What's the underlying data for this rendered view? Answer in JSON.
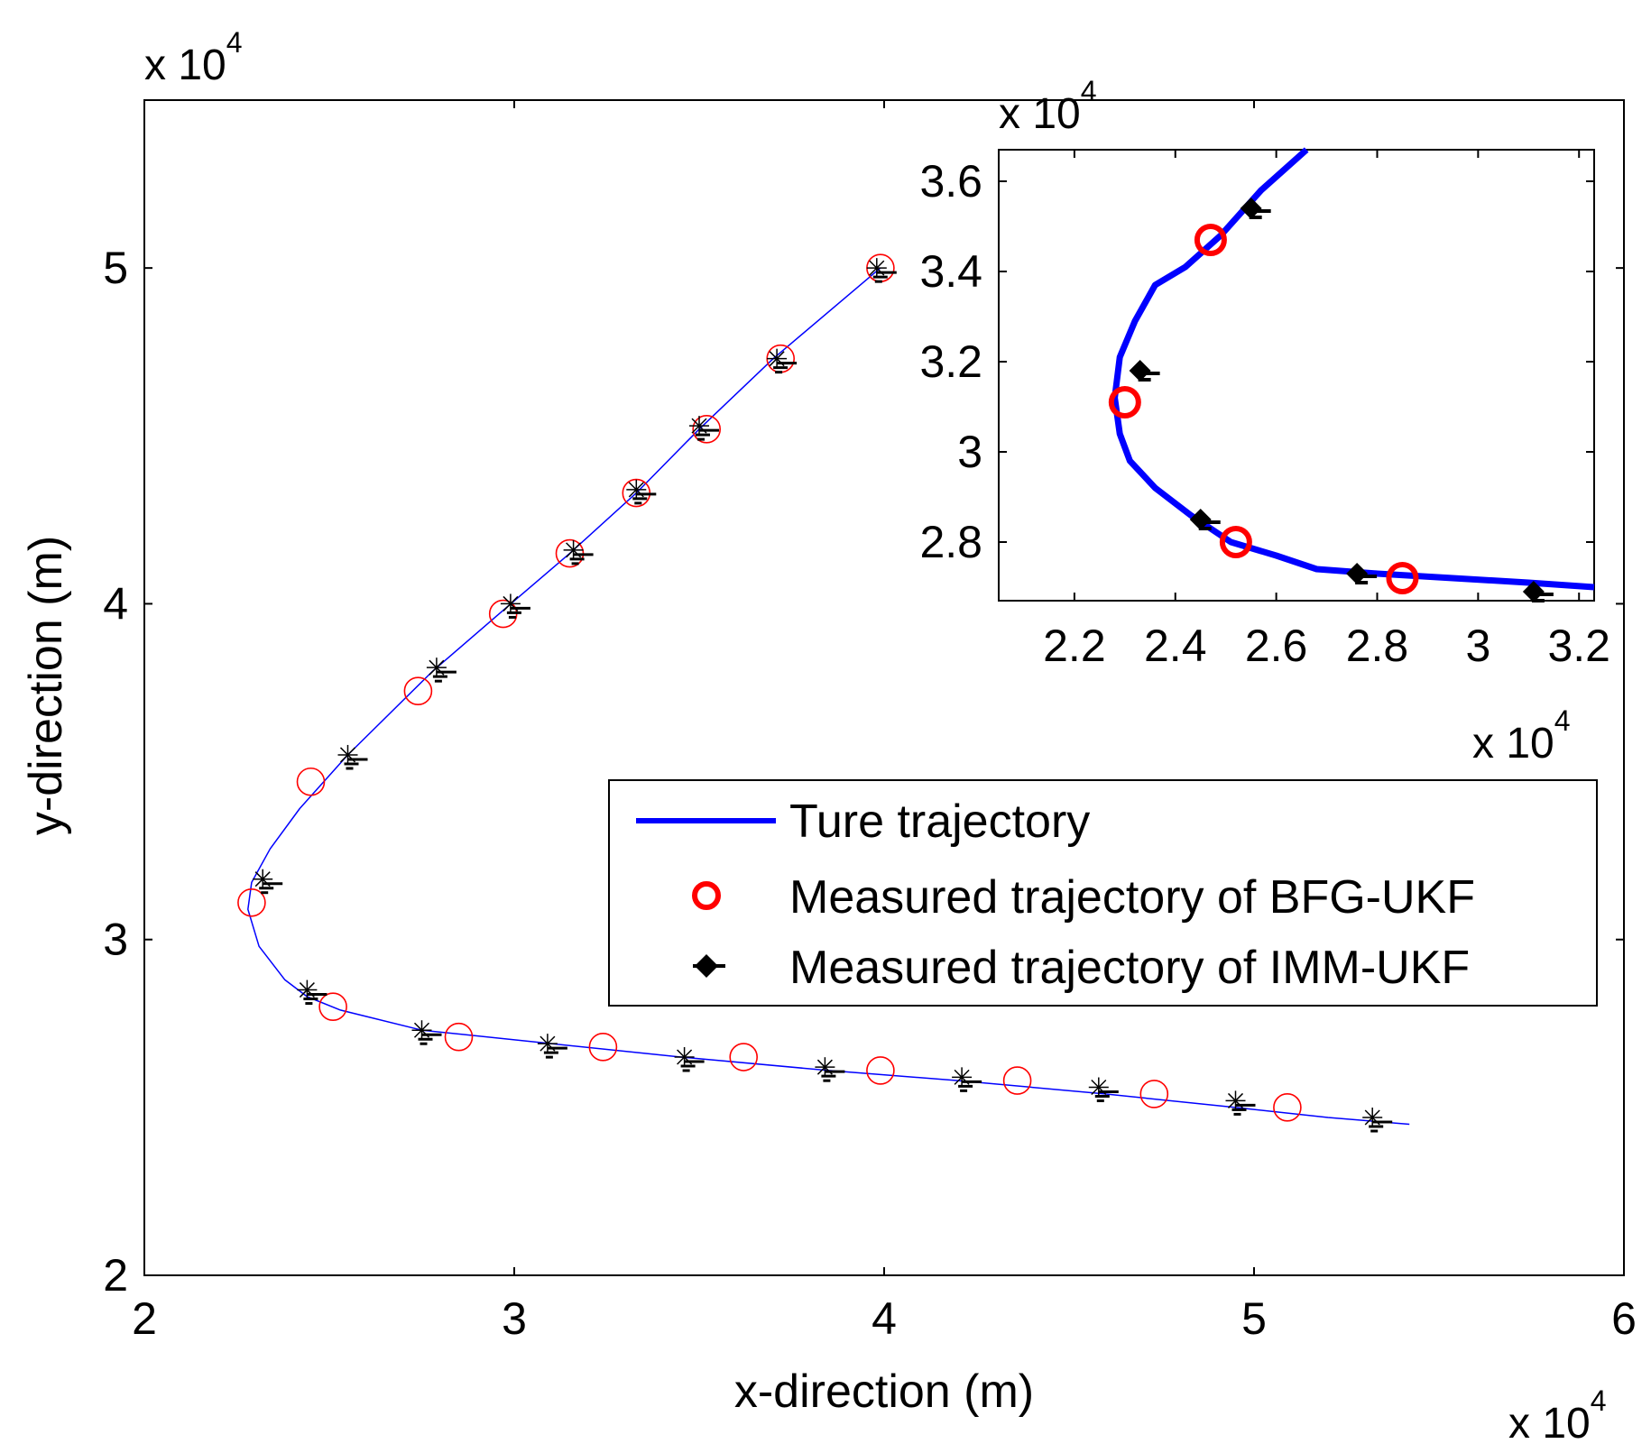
{
  "chart_data": [
    {
      "id": "main",
      "type": "line",
      "xlabel": "x-direction (m)",
      "ylabel": "y-direction (m)",
      "x_multiplier": "x 10",
      "x_multiplier_exp": "4",
      "y_multiplier": "x 10",
      "y_multiplier_exp": "4",
      "xlim": [
        2,
        6
      ],
      "ylim": [
        2,
        5.5
      ],
      "xticks": [
        2,
        3,
        4,
        5,
        6
      ],
      "xtick_labels": [
        "2",
        "3",
        "4",
        "5",
        "6"
      ],
      "yticks": [
        2,
        3,
        4,
        5
      ],
      "ytick_labels": [
        "2",
        "3",
        "4",
        "5"
      ],
      "grid": false,
      "series": [
        {
          "name": "Ture trajectory",
          "kind": "line",
          "color": "#0000ff",
          "x": [
            3.99,
            3.7,
            3.5,
            3.33,
            3.15,
            2.98,
            2.78,
            2.55,
            2.42,
            2.34,
            2.29,
            2.28,
            2.31,
            2.38,
            2.44,
            2.53,
            2.75,
            3.1,
            3.45,
            3.85,
            4.2,
            4.6,
            4.95,
            5.2,
            5.42
          ],
          "y": [
            5.0,
            4.73,
            4.52,
            4.33,
            4.15,
            3.99,
            3.8,
            3.55,
            3.39,
            3.27,
            3.17,
            3.09,
            2.98,
            2.88,
            2.83,
            2.79,
            2.73,
            2.69,
            2.65,
            2.61,
            2.58,
            2.54,
            2.5,
            2.47,
            2.45
          ]
        },
        {
          "name": "Measured trajectory of BFG-UKF",
          "kind": "marker-circle",
          "color": "#ff0000",
          "x": [
            3.99,
            3.72,
            3.52,
            3.33,
            3.15,
            2.97,
            2.74,
            2.45,
            2.29,
            2.51,
            2.85,
            3.24,
            3.62,
            3.99,
            4.36,
            4.73,
            5.09
          ],
          "y": [
            5.0,
            4.73,
            4.52,
            4.33,
            4.15,
            3.97,
            3.74,
            3.47,
            3.11,
            2.8,
            2.71,
            2.68,
            2.65,
            2.61,
            2.58,
            2.54,
            2.5
          ]
        },
        {
          "name": "Measured trajectory of IMM-UKF",
          "kind": "marker-star",
          "color": "#000000",
          "x": [
            3.98,
            3.71,
            3.5,
            3.33,
            3.16,
            2.99,
            2.79,
            2.55,
            2.32,
            2.44,
            2.75,
            3.09,
            3.46,
            3.84,
            4.21,
            4.58,
            4.95,
            5.32
          ],
          "y": [
            5.0,
            4.73,
            4.53,
            4.34,
            4.16,
            4.0,
            3.81,
            3.55,
            3.18,
            2.85,
            2.73,
            2.69,
            2.65,
            2.62,
            2.59,
            2.56,
            2.52,
            2.47
          ]
        }
      ],
      "legend": {
        "placement": "lower-right",
        "entries": [
          "Ture trajectory",
          "Measured trajectory of BFG-UKF",
          "Measured trajectory of IMM-UKF"
        ]
      }
    },
    {
      "id": "inset",
      "type": "line",
      "x_multiplier": "x 10",
      "x_multiplier_exp": "4",
      "y_multiplier": "x 10",
      "y_multiplier_exp": "4",
      "xlim": [
        2.05,
        3.23
      ],
      "ylim": [
        2.67,
        3.67
      ],
      "xticks": [
        2.2,
        2.4,
        2.6,
        2.8,
        3.0,
        3.2
      ],
      "xtick_labels": [
        "2.2",
        "2.4",
        "2.6",
        "2.8",
        "3",
        "3.2"
      ],
      "yticks": [
        2.8,
        3.0,
        3.2,
        3.4,
        3.6
      ],
      "ytick_labels": [
        "2.8",
        "3",
        "3.2",
        "3.4",
        "3.6"
      ],
      "grid": false,
      "series": [
        {
          "name": "Ture trajectory",
          "kind": "line",
          "color": "#0000ff",
          "x": [
            2.66,
            2.57,
            2.49,
            2.42,
            2.36,
            2.32,
            2.29,
            2.28,
            2.29,
            2.31,
            2.36,
            2.43,
            2.51,
            2.6,
            2.68,
            2.8,
            2.95,
            3.1,
            3.23
          ],
          "y": [
            3.67,
            3.58,
            3.48,
            3.41,
            3.37,
            3.29,
            3.21,
            3.12,
            3.04,
            2.98,
            2.92,
            2.86,
            2.8,
            2.77,
            2.74,
            2.73,
            2.72,
            2.71,
            2.7
          ]
        },
        {
          "name": "Measured trajectory of BFG-UKF",
          "kind": "marker-circle",
          "color": "#ff0000",
          "x": [
            2.47,
            2.3,
            2.52,
            2.85
          ],
          "y": [
            3.47,
            3.11,
            2.8,
            2.72
          ]
        },
        {
          "name": "Measured trajectory of IMM-UKF",
          "kind": "marker-diamond",
          "color": "#000000",
          "x": [
            2.55,
            2.33,
            2.45,
            2.76,
            3.11
          ],
          "y": [
            3.54,
            3.18,
            2.85,
            2.73,
            2.69
          ]
        }
      ]
    }
  ],
  "legend_items": [
    {
      "label": "Ture trajectory",
      "color": "#0000ff"
    },
    {
      "label": "Measured trajectory of BFG-UKF",
      "color": "#ff0000"
    },
    {
      "label": "Measured trajectory of IMM-UKF",
      "color": "#000000"
    }
  ]
}
